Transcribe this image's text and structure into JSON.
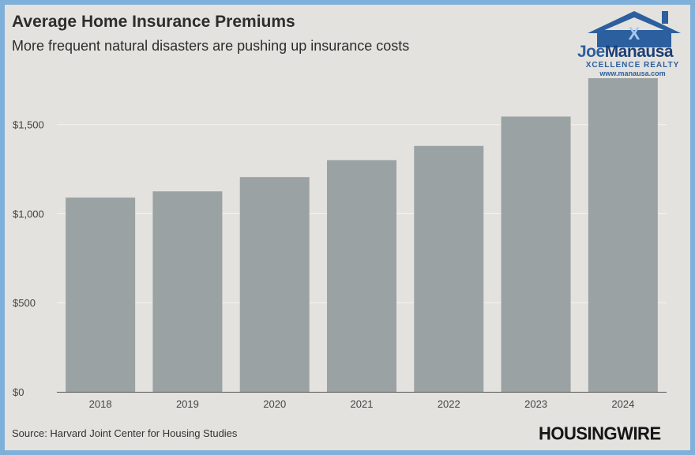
{
  "title": "Average Home Insurance Premiums",
  "subtitle": "More frequent natural disasters are pushing up insurance costs",
  "source": "Source: Harvard Joint Center for Housing Studies",
  "publisher_logo": "HOUSINGWIRE",
  "brand": {
    "name_joe": "Joe",
    "name_manausa": "Manausa",
    "tagline": "XCELLENCE REALTY",
    "url": "www.manausa.com"
  },
  "colors": {
    "bar": "#9aa2a4",
    "background": "#e4e2de",
    "border": "#7fb0d9",
    "grid": "#f2f1ee"
  },
  "chart_data": {
    "type": "bar",
    "categories": [
      "2018",
      "2019",
      "2020",
      "2021",
      "2022",
      "2023",
      "2024"
    ],
    "values": [
      1090,
      1125,
      1205,
      1300,
      1380,
      1545,
      1760
    ],
    "y_ticks": [
      0,
      500,
      1000,
      1500
    ],
    "y_tick_labels": [
      "$0",
      "$500",
      "$1,000",
      "$1,500"
    ],
    "ylim": [
      0,
      1800
    ],
    "xlabel": "",
    "ylabel": "",
    "grid": true,
    "legend": "none"
  }
}
